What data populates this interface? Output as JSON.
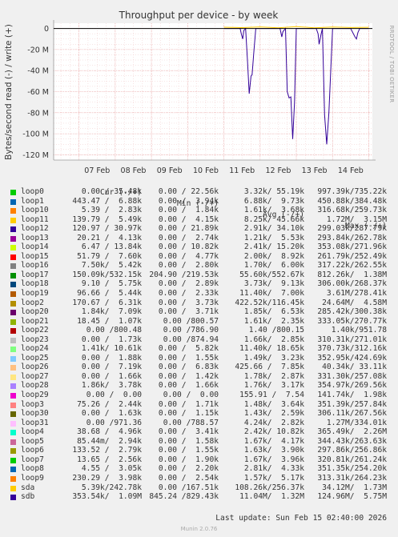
{
  "chart_data": {
    "type": "line",
    "title": "Throughput per device - by week",
    "ylabel": "Bytes/second read (-) / write (+)",
    "side_label": "RRDTOOL / TOBI OETIKER",
    "x_ticks": [
      "07 Feb",
      "08 Feb",
      "09 Feb",
      "10 Feb",
      "11 Feb",
      "12 Feb",
      "13 Feb",
      "14 Feb"
    ],
    "y_ticks": [
      "0",
      "-20 M",
      "-40 M",
      "-60 M",
      "-80 M",
      "-100 M",
      "-120 M"
    ],
    "ylim": [
      -125,
      5
    ],
    "xlim_days": [
      6.3,
      15.1
    ],
    "colors": {
      "background": "#f0f0f0",
      "plot_bg": "#ffffff",
      "grid_major": "#e8a0a0",
      "grid_minor": "#f0c8c8",
      "sdb_line": "#330099",
      "sda_line": "#ffcc00",
      "zero_line": "#000000"
    },
    "series": [
      {
        "name": "sdb",
        "unit": "M",
        "x": [
          11.0,
          11.2,
          11.45,
          11.48,
          11.52,
          11.55,
          11.6,
          11.65,
          11.7,
          11.75,
          11.78,
          11.82,
          11.88,
          12.3,
          12.55,
          12.6,
          12.63,
          12.7,
          12.75,
          12.8,
          12.85,
          12.9,
          12.95,
          13.0,
          13.3,
          13.55,
          13.6,
          13.63,
          13.68,
          13.72,
          13.78,
          13.84,
          13.9,
          14.0,
          14.5,
          14.62,
          14.66,
          14.7,
          14.75,
          15.0
        ],
        "values": [
          0,
          0,
          0,
          -5,
          -10,
          -2,
          0,
          -30,
          -62,
          -45,
          -44,
          -25,
          0,
          0,
          0,
          -8,
          -3,
          0,
          -60,
          -66,
          -65,
          -105,
          -70,
          0,
          0,
          0,
          -5,
          -15,
          -6,
          0,
          -82,
          -110,
          -80,
          0,
          0,
          -8,
          -10,
          -4,
          0,
          0
        ]
      },
      {
        "name": "sda",
        "unit": "M",
        "x": [
          11.0,
          11.5,
          12.0,
          12.5,
          13.0,
          13.5,
          14.0,
          14.5,
          15.0
        ],
        "values": [
          1.2,
          0.8,
          1.5,
          0.6,
          1.8,
          0.7,
          1.4,
          0.9,
          1.1
        ]
      }
    ]
  },
  "legend": {
    "headers": {
      "cur": "Cur (-/+)",
      "min": "Min (-/+)",
      "avg": "Avg (-/+)",
      "max": "Max (-/+)"
    },
    "rows": [
      {
        "name": "loop0",
        "color": "#00cc00",
        "cur": "0.00 / 35.48k",
        "min": "0.00 / 22.56k",
        "avg": "3.32k/ 55.19k",
        "max": "997.39k/735.22k"
      },
      {
        "name": "loop1",
        "color": "#0066b3",
        "cur": "443.47 /  6.88k",
        "min": "0.00 /  3.94k",
        "avg": "6.88k/  9.73k",
        "max": "450.88k/384.48k"
      },
      {
        "name": "loop10",
        "color": "#ff8000",
        "cur": "5.39 /  2.83k",
        "min": "0.00 /  1.84k",
        "avg": "1.61k/  3.68k",
        "max": "316.68k/259.73k"
      },
      {
        "name": "loop11",
        "color": "#ffcc00",
        "cur": "139.79 /  5.49k",
        "min": "0.00 /  4.15k",
        "avg": "8.25k/ 45.66k",
        "max": "1.72M/  3.15M"
      },
      {
        "name": "loop12",
        "color": "#330099",
        "cur": "120.97 / 30.97k",
        "min": "0.00 / 21.89k",
        "avg": "2.91k/ 34.10k",
        "max": "299.03k/287.79k"
      },
      {
        "name": "loop13",
        "color": "#990099",
        "cur": "20.21 /  4.13k",
        "min": "0.00 /  2.74k",
        "avg": "1.21k/  5.53k",
        "max": "293.84k/262.78k"
      },
      {
        "name": "loop14",
        "color": "#ccff00",
        "cur": "6.47 / 13.84k",
        "min": "0.00 / 10.82k",
        "avg": "2.41k/ 15.20k",
        "max": "353.08k/271.96k"
      },
      {
        "name": "loop15",
        "color": "#ff0000",
        "cur": "51.79 /  7.60k",
        "min": "0.00 /  4.77k",
        "avg": "2.00k/  8.92k",
        "max": "261.79k/252.49k"
      },
      {
        "name": "loop16",
        "color": "#808080",
        "cur": "7.50k/  5.42k",
        "min": "0.00 /  2.80k",
        "avg": "1.70k/  6.00k",
        "max": "317.22k/262.55k"
      },
      {
        "name": "loop17",
        "color": "#008f00",
        "cur": "150.09k/532.15k",
        "min": "204.90 /219.53k",
        "avg": "55.60k/552.67k",
        "max": "812.26k/  1.38M"
      },
      {
        "name": "loop18",
        "color": "#00487d",
        "cur": "9.10 /  5.75k",
        "min": "0.00 /  2.89k",
        "avg": "3.73k/  9.13k",
        "max": "306.00k/268.37k"
      },
      {
        "name": "loop19",
        "color": "#b35a00",
        "cur": "96.66 /  5.44k",
        "min": "0.00 /  2.33k",
        "avg": "11.40k/  7.00k",
        "max": "3.61M/278.41k"
      },
      {
        "name": "loop2",
        "color": "#b38f00",
        "cur": "170.67 /  6.31k",
        "min": "0.00 /  3.73k",
        "avg": "422.52k/116.45k",
        "max": "24.64M/  4.58M"
      },
      {
        "name": "loop20",
        "color": "#6b006b",
        "cur": "1.84k/  7.09k",
        "min": "0.00 /  3.71k",
        "avg": "1.85k/  6.53k",
        "max": "285.42k/300.38k"
      },
      {
        "name": "loop21",
        "color": "#8fb300",
        "cur": "18.45 /  1.07k",
        "min": "0.00 /800.57",
        "avg": "1.61k/  2.35k",
        "max": "333.05k/270.77k"
      },
      {
        "name": "loop22",
        "color": "#b30000",
        "cur": "0.00 /800.48",
        "min": "0.00 /786.90",
        "avg": "1.40 /800.15",
        "max": "1.40k/951.78"
      },
      {
        "name": "loop23",
        "color": "#bebebe",
        "cur": "0.00 /  1.73k",
        "min": "0.00 /874.94",
        "avg": "1.66k/  2.85k",
        "max": "310.31k/271.01k"
      },
      {
        "name": "loop24",
        "color": "#80ff80",
        "cur": "1.41k/ 10.61k",
        "min": "0.00 /  5.82k",
        "avg": "11.40k/ 18.65k",
        "max": "370.73k/312.16k"
      },
      {
        "name": "loop25",
        "color": "#80c9ff",
        "cur": "0.00 /  1.88k",
        "min": "0.00 /  1.55k",
        "avg": "1.49k/  3.23k",
        "max": "352.95k/424.69k"
      },
      {
        "name": "loop26",
        "color": "#ffc080",
        "cur": "0.00 /  7.19k",
        "min": "0.00 /  6.83k",
        "avg": "425.66 /  7.85k",
        "max": "40.34k/ 33.11k"
      },
      {
        "name": "loop27",
        "color": "#ffe680",
        "cur": "0.00 /  1.66k",
        "min": "0.00 /  1.42k",
        "avg": "1.78k/  2.87k",
        "max": "331.30k/257.08k"
      },
      {
        "name": "loop28",
        "color": "#aa80ff",
        "cur": "1.86k/  3.78k",
        "min": "0.00 /  1.66k",
        "avg": "1.76k/  3.17k",
        "max": "354.97k/269.56k"
      },
      {
        "name": "loop29",
        "color": "#ee00cc",
        "cur": "0.00 /  0.00",
        "min": "0.00 /  0.00",
        "avg": "155.91 /  7.54",
        "max": "141.74k/  1.98k"
      },
      {
        "name": "loop3",
        "color": "#ff8080",
        "cur": "75.26 /  2.44k",
        "min": "0.00 /  1.71k",
        "avg": "1.48k/  3.64k",
        "max": "351.39k/257.84k"
      },
      {
        "name": "loop30",
        "color": "#666600",
        "cur": "0.00 /  1.63k",
        "min": "0.00 /  1.15k",
        "avg": "1.43k/  2.59k",
        "max": "306.11k/267.56k"
      },
      {
        "name": "loop31",
        "color": "#ffbfff",
        "cur": "0.00 /971.36",
        "min": "0.00 /788.57",
        "avg": "4.24k/  2.82k",
        "max": "1.27M/334.01k"
      },
      {
        "name": "loop4",
        "color": "#00ffcc",
        "cur": "38.68 /  4.96k",
        "min": "0.00 /  3.41k",
        "avg": "2.42k/ 10.82k",
        "max": "365.49k/  2.26M"
      },
      {
        "name": "loop5",
        "color": "#cc6699",
        "cur": "85.44m/  2.94k",
        "min": "0.00 /  1.58k",
        "avg": "1.67k/  4.17k",
        "max": "344.43k/263.63k"
      },
      {
        "name": "loop6",
        "color": "#999900",
        "cur": "133.52 /  2.79k",
        "min": "0.00 /  1.55k",
        "avg": "1.63k/  3.90k",
        "max": "297.86k/256.86k"
      },
      {
        "name": "loop7",
        "color": "#00cc00",
        "cur": "13.65 /  2.56k",
        "min": "0.00 /  1.90k",
        "avg": "1.67k/  3.96k",
        "max": "320.81k/261.24k"
      },
      {
        "name": "loop8",
        "color": "#0066b3",
        "cur": "4.55 /  3.05k",
        "min": "0.00 /  2.20k",
        "avg": "2.81k/  4.33k",
        "max": "351.35k/254.20k"
      },
      {
        "name": "loop9",
        "color": "#ff8000",
        "cur": "230.29 /  3.98k",
        "min": "0.00 /  2.54k",
        "avg": "1.57k/  5.17k",
        "max": "313.31k/264.23k"
      },
      {
        "name": "sda",
        "color": "#ffcc00",
        "cur": "5.39k/242.78k",
        "min": "0.00 /167.51k",
        "avg": "108.26k/256.37k",
        "max": "34.12M/  1.73M"
      },
      {
        "name": "sdb",
        "color": "#330099",
        "cur": "353.54k/  1.09M",
        "min": "845.24 /829.43k",
        "avg": "11.04M/  1.32M",
        "max": "124.96M/  5.75M"
      }
    ]
  },
  "footer": {
    "last_update": "Last update: Sun Feb 15 02:40:00 2026",
    "munin": "Munin 2.0.76"
  }
}
